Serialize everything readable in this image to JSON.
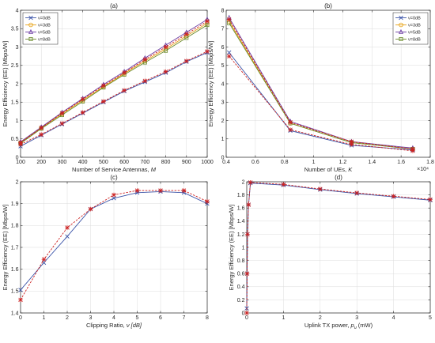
{
  "chart_data": [
    {
      "type": "line",
      "title": "(a)",
      "xlabel": "Number of Service Antennas,",
      "xlabel_sym": "M",
      "ylabel": "Energy Efficiency (EE) [Mbps/W]",
      "xlim": [
        100,
        1000
      ],
      "ylim": [
        0,
        4
      ],
      "xticks": [
        100,
        200,
        300,
        400,
        500,
        600,
        700,
        800,
        900,
        1000
      ],
      "yticks": [
        0,
        0.5,
        1,
        1.5,
        2,
        2.5,
        3,
        3.5,
        4
      ],
      "grid": true,
      "legend": "top-left",
      "x": [
        100,
        200,
        300,
        400,
        500,
        600,
        700,
        800,
        900,
        1000
      ],
      "series": [
        {
          "name": "ν=0dB",
          "color": "#3b54a8",
          "marker": "x",
          "values": [
            0.3,
            0.6,
            0.9,
            1.2,
            1.5,
            1.8,
            2.05,
            2.3,
            2.6,
            2.85
          ]
        },
        {
          "name": "ν=3dB",
          "color": "#e6a010",
          "marker": "o",
          "values": [
            0.4,
            0.8,
            1.18,
            1.55,
            1.92,
            2.28,
            2.62,
            2.95,
            3.3,
            3.65
          ]
        },
        {
          "name": "ν=5dB",
          "color": "#6a3aa0",
          "marker": "^",
          "values": [
            0.42,
            0.82,
            1.22,
            1.6,
            1.98,
            2.33,
            2.7,
            3.05,
            3.4,
            3.75
          ]
        },
        {
          "name": "ν=8dB",
          "color": "#6a8a2a",
          "marker": "s",
          "values": [
            0.38,
            0.78,
            1.15,
            1.52,
            1.9,
            2.25,
            2.58,
            2.9,
            3.25,
            3.6
          ]
        },
        {
          "name": "",
          "color": "#cc2020",
          "marker": "*",
          "dashed": true,
          "values": [
            0.35,
            0.62,
            0.92,
            1.22,
            1.52,
            1.82,
            2.08,
            2.33,
            2.62,
            2.88
          ]
        },
        {
          "name": "",
          "color": "#cc2020",
          "marker": "*",
          "dashed": true,
          "values": [
            0.4,
            0.8,
            1.2,
            1.58,
            1.95,
            2.3,
            2.66,
            3.0,
            3.35,
            3.7
          ]
        }
      ]
    },
    {
      "type": "line",
      "title": "(b)",
      "xlabel": "Number of UEs,",
      "xlabel_sym": "K",
      "ylabel": "Energy Efficiency (EE) [Mbps/W]",
      "x_exponent": "×10⁴",
      "xlim": [
        0.4,
        1.8
      ],
      "ylim": [
        0,
        8
      ],
      "xticks": [
        0.4,
        0.6,
        0.8,
        1,
        1.2,
        1.4,
        1.6,
        1.8
      ],
      "yticks": [
        0,
        1,
        2,
        3,
        4,
        5,
        6,
        7,
        8
      ],
      "grid": true,
      "legend": "top-right",
      "x": [
        0.42,
        0.84,
        1.26,
        1.68
      ],
      "series": [
        {
          "name": "ν=0dB",
          "color": "#3b54a8",
          "marker": "x",
          "values": [
            5.7,
            1.45,
            0.65,
            0.4
          ]
        },
        {
          "name": "ν=3dB",
          "color": "#e6a010",
          "marker": "o",
          "values": [
            7.4,
            1.85,
            0.8,
            0.45
          ]
        },
        {
          "name": "ν=5dB",
          "color": "#6a3aa0",
          "marker": "^",
          "values": [
            7.6,
            1.95,
            0.85,
            0.5
          ]
        },
        {
          "name": "ν=8dB",
          "color": "#6a8a2a",
          "marker": "s",
          "values": [
            7.3,
            1.85,
            0.8,
            0.45
          ]
        },
        {
          "name": "",
          "color": "#cc2020",
          "marker": "*",
          "dashed": true,
          "values": [
            5.5,
            1.5,
            0.7,
            0.35
          ]
        },
        {
          "name": "",
          "color": "#cc2020",
          "marker": "*",
          "dashed": true,
          "values": [
            7.5,
            1.9,
            0.85,
            0.45
          ]
        }
      ]
    },
    {
      "type": "line",
      "title": "(c)",
      "xlabel": "Clipping Ratio,",
      "xlabel_sym": "ν [dB]",
      "ylabel": "Energy Efficiency (EE) [Mbps/W]",
      "xlim": [
        0,
        8
      ],
      "ylim": [
        1.4,
        2
      ],
      "xticks": [
        0,
        1,
        2,
        3,
        4,
        5,
        6,
        7,
        8
      ],
      "yticks": [
        1.4,
        1.5,
        1.6,
        1.7,
        1.8,
        1.9,
        2
      ],
      "grid": true,
      "x": [
        0,
        1,
        2,
        3,
        4,
        5,
        6,
        7,
        8
      ],
      "series": [
        {
          "name": "",
          "color": "#3b54a8",
          "marker": "x",
          "values": [
            1.505,
            1.63,
            1.75,
            1.875,
            1.925,
            1.95,
            1.955,
            1.95,
            1.9
          ]
        },
        {
          "name": "",
          "color": "#cc2020",
          "marker": "*",
          "dashed": true,
          "values": [
            1.46,
            1.645,
            1.79,
            1.875,
            1.94,
            1.96,
            1.96,
            1.96,
            1.91
          ]
        }
      ]
    },
    {
      "type": "line",
      "title": "(d)",
      "xlabel": "Uplink TX power,",
      "xlabel_sym": "p",
      "xlabel_sub": "u",
      "xlabel_unit": "(mW)",
      "ylabel": "Energy Efficiency (EE) [Mbps/W]",
      "xlim": [
        0,
        5
      ],
      "ylim": [
        0,
        2
      ],
      "xticks": [
        0,
        1,
        2,
        3,
        4,
        5
      ],
      "yticks": [
        0,
        0.2,
        0.4,
        0.6,
        0.8,
        1,
        1.2,
        1.4,
        1.6,
        1.8,
        2
      ],
      "grid": true,
      "x": [
        0,
        0.01,
        0.02,
        0.05,
        0.1,
        1,
        2,
        3,
        4,
        5
      ],
      "series": [
        {
          "name": "",
          "color": "#3b54a8",
          "marker": "x",
          "values": [
            0.07,
            0.6,
            1.2,
            1.65,
            1.98,
            1.95,
            1.88,
            1.82,
            1.77,
            1.72
          ]
        },
        {
          "name": "",
          "color": "#cc2020",
          "marker": "*",
          "dashed": true,
          "values": [
            0.0,
            0.6,
            1.2,
            1.65,
            1.99,
            1.96,
            1.89,
            1.83,
            1.78,
            1.73
          ]
        }
      ]
    }
  ]
}
